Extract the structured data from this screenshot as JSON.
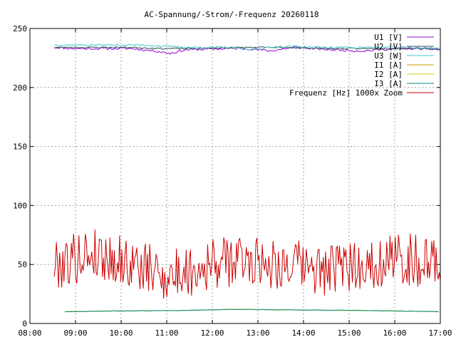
{
  "chart_data": {
    "type": "line",
    "title": "AC-Spannung/-Strom/-Frequenz 20260118",
    "xlabel": "",
    "ylabel": "",
    "x_ticks": [
      "08:00",
      "09:00",
      "10:00",
      "11:00",
      "12:00",
      "13:00",
      "14:00",
      "15:00",
      "16:00",
      "17:00"
    ],
    "y_ticks": [
      0,
      50,
      100,
      150,
      200,
      250
    ],
    "xlim": [
      "08:00",
      "17:00"
    ],
    "ylim": [
      0,
      250
    ],
    "grid": true,
    "legend_position": "top-right",
    "series": [
      {
        "name": "U1 [V]",
        "color": "#9400d3",
        "x_range": [
          "08:32",
          "17:00"
        ],
        "knots": [
          [
            0,
            234
          ],
          [
            0.05,
            233
          ],
          [
            0.12,
            233
          ],
          [
            0.2,
            233
          ],
          [
            0.26,
            231
          ],
          [
            0.3,
            229
          ],
          [
            0.34,
            232
          ],
          [
            0.45,
            233
          ],
          [
            0.5,
            233
          ],
          [
            0.56,
            231
          ],
          [
            0.62,
            234
          ],
          [
            0.72,
            232
          ],
          [
            0.8,
            231
          ],
          [
            0.88,
            233
          ],
          [
            0.95,
            233
          ],
          [
            1,
            232
          ]
        ]
      },
      {
        "name": "U2 [V]",
        "color": "#2f4f4f",
        "x_range": [
          "08:32",
          "17:00"
        ],
        "knots": [
          [
            0,
            234
          ],
          [
            0.1,
            234
          ],
          [
            0.2,
            234
          ],
          [
            0.28,
            233
          ],
          [
            0.35,
            233
          ],
          [
            0.5,
            234
          ],
          [
            0.6,
            234
          ],
          [
            0.7,
            233
          ],
          [
            0.8,
            233
          ],
          [
            0.9,
            233
          ],
          [
            1,
            233
          ]
        ]
      },
      {
        "name": "U3 [W]",
        "color": "#40c8c8",
        "x_range": [
          "08:32",
          "17:00"
        ],
        "knots": [
          [
            0,
            236
          ],
          [
            0.08,
            236
          ],
          [
            0.18,
            236
          ],
          [
            0.24,
            236
          ],
          [
            0.28,
            235
          ],
          [
            0.35,
            234
          ],
          [
            0.45,
            234
          ],
          [
            0.5,
            232
          ],
          [
            0.6,
            235
          ],
          [
            0.7,
            234
          ],
          [
            0.8,
            234
          ],
          [
            0.9,
            234
          ],
          [
            1,
            233
          ]
        ]
      },
      {
        "name": "I1 [A]",
        "color": "#c8a000",
        "x_range": [
          "08:46",
          "16:58"
        ],
        "knots": [
          [
            0,
            10
          ],
          [
            0.1,
            10.5
          ],
          [
            0.3,
            11
          ],
          [
            0.45,
            12
          ],
          [
            0.6,
            11.5
          ],
          [
            0.8,
            11
          ],
          [
            1,
            10
          ]
        ]
      },
      {
        "name": "I2 [A]",
        "color": "#d4d400",
        "x_range": [
          "08:46",
          "16:58"
        ],
        "knots": [
          [
            0,
            10
          ],
          [
            0.1,
            10.5
          ],
          [
            0.3,
            11
          ],
          [
            0.45,
            12
          ],
          [
            0.6,
            11.5
          ],
          [
            0.8,
            11
          ],
          [
            1,
            10
          ]
        ]
      },
      {
        "name": "I3 [A]",
        "color": "#008b8b",
        "x_range": [
          "08:46",
          "16:58"
        ],
        "knots": [
          [
            0,
            10
          ],
          [
            0.1,
            10.5
          ],
          [
            0.3,
            11
          ],
          [
            0.45,
            12
          ],
          [
            0.6,
            11.5
          ],
          [
            0.8,
            11
          ],
          [
            1,
            10
          ]
        ]
      },
      {
        "name": "Frequenz [Hz] 1000x Zoom",
        "color": "#cc0000",
        "x_range": [
          "08:32",
          "17:00"
        ],
        "knots": [
          [
            0,
            50
          ],
          [
            0.1,
            60
          ],
          [
            0.2,
            50
          ],
          [
            0.3,
            40
          ],
          [
            0.4,
            50
          ],
          [
            0.5,
            55
          ],
          [
            0.6,
            50
          ],
          [
            0.7,
            45
          ],
          [
            0.8,
            50
          ],
          [
            0.9,
            55
          ],
          [
            1,
            50
          ]
        ]
      }
    ]
  }
}
